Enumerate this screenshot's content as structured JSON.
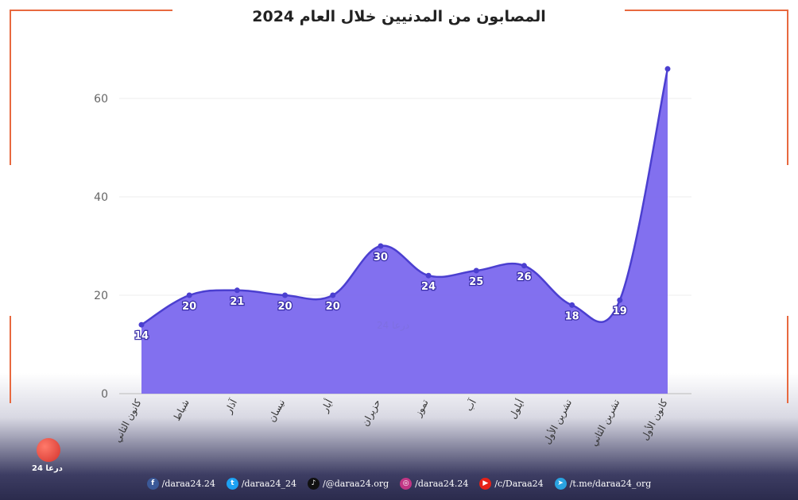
{
  "chart_data": {
    "type": "area",
    "title": "المصابون من المدنيين خلال العام 2024",
    "categories": [
      "كانون الثاني",
      "شباط",
      "آذار",
      "نيسان",
      "أيار",
      "حزيران",
      "تموز",
      "آب",
      "أيلول",
      "تشرين الأول",
      "تشرين الثاني",
      "كانون الأول"
    ],
    "series": [
      {
        "values": [
          14,
          20,
          21,
          20,
          20,
          30,
          24,
          25,
          26,
          18,
          19,
          66
        ]
      }
    ],
    "data_labels": [
      "14",
      "20",
      "21",
      "20",
      "20",
      "30",
      "24",
      "25",
      "26",
      "18",
      "19",
      ""
    ],
    "ylim": [
      0,
      70
    ],
    "yticks": [
      0,
      20,
      40,
      60
    ],
    "ytick_labels": [
      "0",
      "20",
      "40",
      "60"
    ],
    "grid": true,
    "legend": "none",
    "colors": {
      "fill": "#7b68ee",
      "line": "#4b3fd0",
      "label_text": "#ffffff",
      "frame": "#e8693f"
    }
  },
  "watermark": "درعا 24",
  "logo": {
    "text": "درعا 24",
    "icon": "daraa24-logo-icon"
  },
  "footer": {
    "links": [
      {
        "icon": "facebook-icon",
        "glyph": "f",
        "color": "#3b5998",
        "text": "/daraa24.24"
      },
      {
        "icon": "twitter-icon",
        "glyph": "t",
        "color": "#1da1f2",
        "text": "/daraa24_24"
      },
      {
        "icon": "tiktok-icon",
        "glyph": "♪",
        "color": "#111111",
        "text": "/@daraa24.org"
      },
      {
        "icon": "instagram-icon",
        "glyph": "◎",
        "color": "#c13584",
        "text": "/daraa24.24"
      },
      {
        "icon": "youtube-icon",
        "glyph": "▶",
        "color": "#e62117",
        "text": "/c/Daraa24"
      },
      {
        "icon": "telegram-icon",
        "glyph": "➤",
        "color": "#2aa3e0",
        "text": "/t.me/daraa24_org"
      }
    ]
  }
}
